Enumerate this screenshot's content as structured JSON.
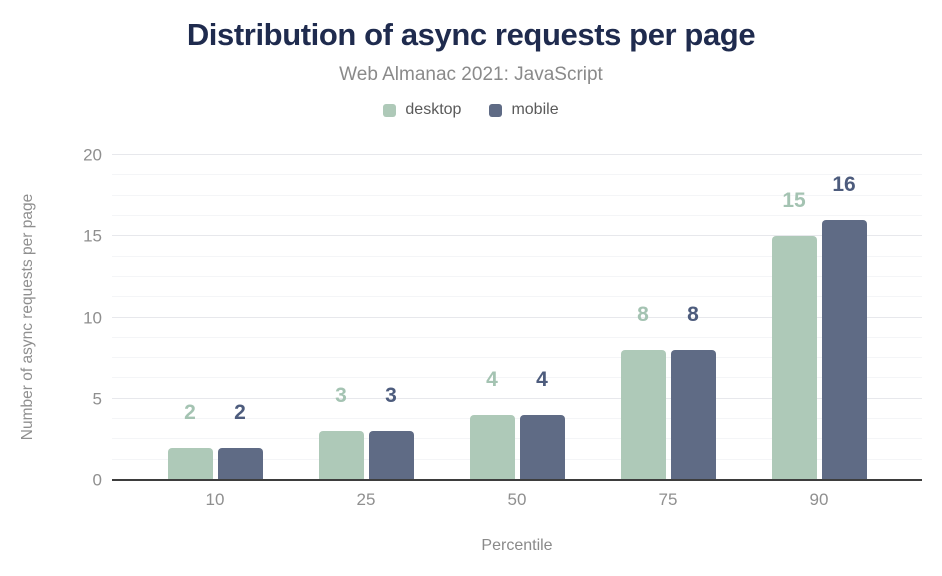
{
  "chart_data": {
    "type": "bar",
    "title": "Distribution of async requests per page",
    "subtitle": "Web Almanac 2021: JavaScript",
    "categories": [
      "10",
      "25",
      "50",
      "75",
      "90"
    ],
    "series": [
      {
        "name": "desktop",
        "values": [
          2,
          3,
          4,
          8,
          15
        ],
        "color": "#aec9b8",
        "label_color": "#a4c3b2"
      },
      {
        "name": "mobile",
        "values": [
          2,
          3,
          4,
          8,
          16
        ],
        "color": "#5f6b85",
        "label_color": "#4d5c7d"
      }
    ],
    "xlabel": "Percentile",
    "ylabel": "Number of async requests per page",
    "ylim": [
      0,
      20
    ],
    "ytick_step": 5,
    "yticks": [
      0,
      5,
      10,
      15,
      20
    ],
    "minor_grid_step": 1.25,
    "grid": true,
    "legend_position": "top",
    "colors": {
      "title": "#1f2b4e",
      "subtitle": "#8a8a8a",
      "axis_text": "#8f8f8f",
      "axis_line": "#3d3d3d",
      "major_grid": "#e7e8ec",
      "minor_grid": "#f4f5f7",
      "background": "#ffffff"
    }
  }
}
